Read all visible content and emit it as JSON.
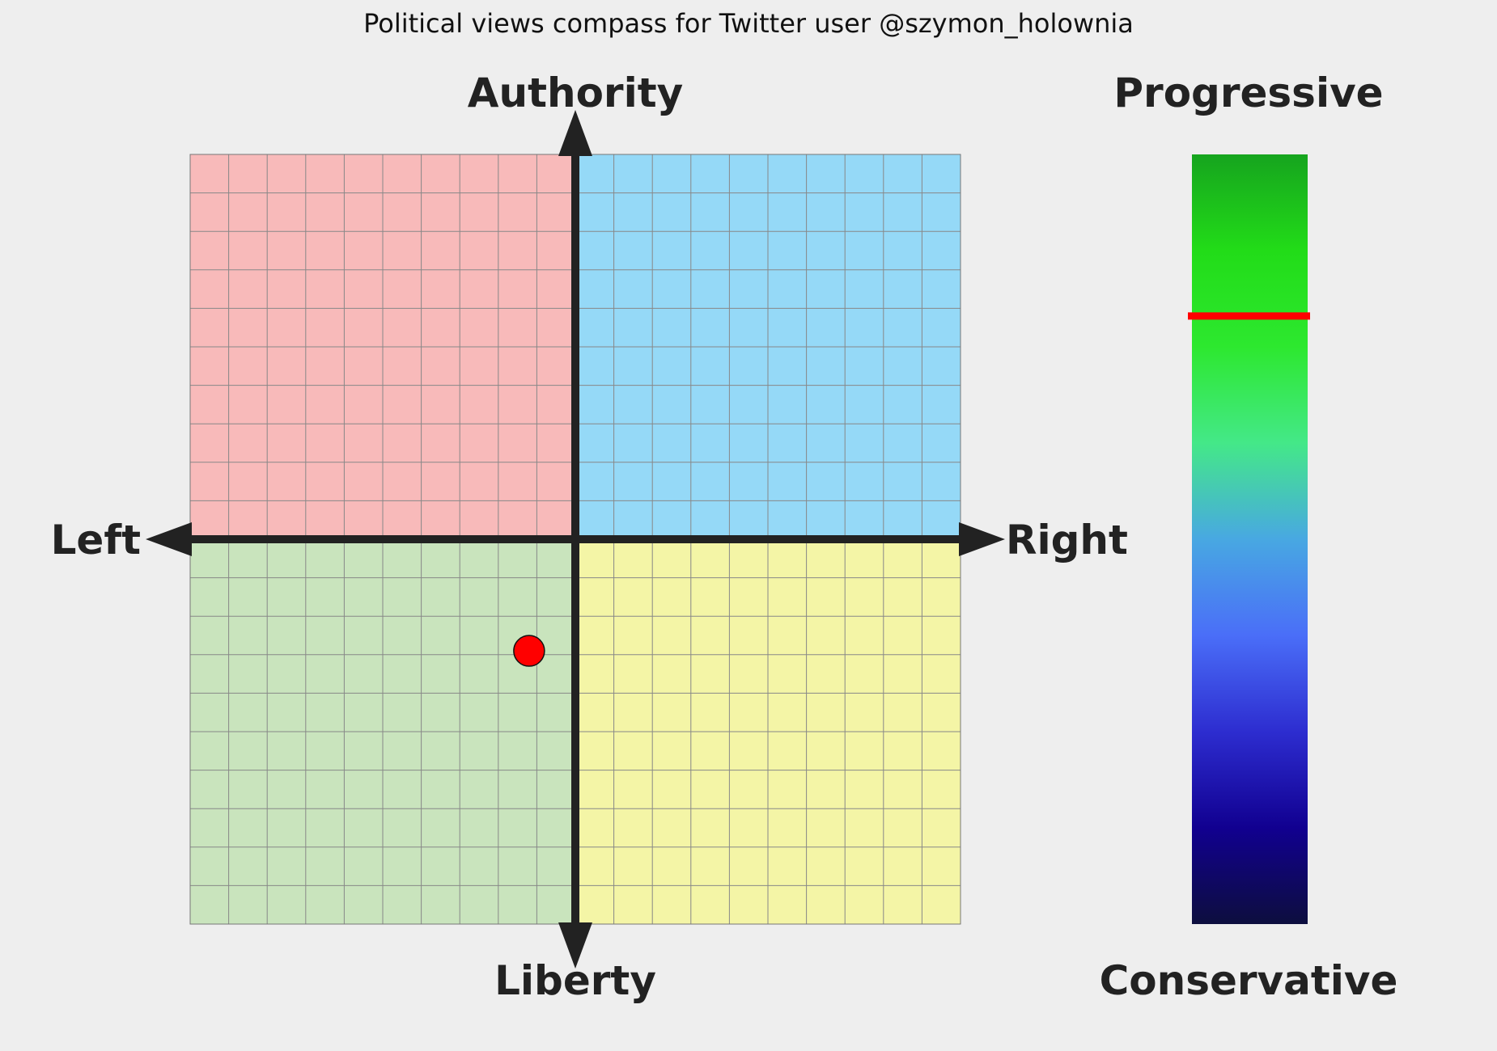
{
  "chart_data": [
    {
      "type": "scatter",
      "title": "Political views compass for Twitter user @szymon_holownia",
      "labels": {
        "top": "Authority",
        "bottom": "Liberty",
        "left": "Left",
        "right": "Right"
      },
      "xlim": [
        -10,
        10
      ],
      "ylim": [
        -10,
        10
      ],
      "grid": true,
      "quadrant_colors": {
        "top_left": "#f8baba",
        "top_right": "#95d9f7",
        "bottom_left": "#c9e4bd",
        "bottom_right": "#f4f5a6"
      },
      "points": [
        {
          "x": -1.2,
          "y": -2.9,
          "color": "#ff0000"
        }
      ]
    },
    {
      "type": "bar",
      "orientation": "vertical-scale",
      "labels": {
        "top": "Progressive",
        "bottom": "Conservative"
      },
      "ylim": [
        0,
        1
      ],
      "value": 0.79,
      "marker_color": "#ff0000",
      "gradient_colors": [
        "#16a41e",
        "#22dc18",
        "#2de82f",
        "#44e888",
        "#48a8e2",
        "#4a6ef8",
        "#2d2dd0",
        "#110090",
        "#0d0e3e"
      ]
    }
  ]
}
